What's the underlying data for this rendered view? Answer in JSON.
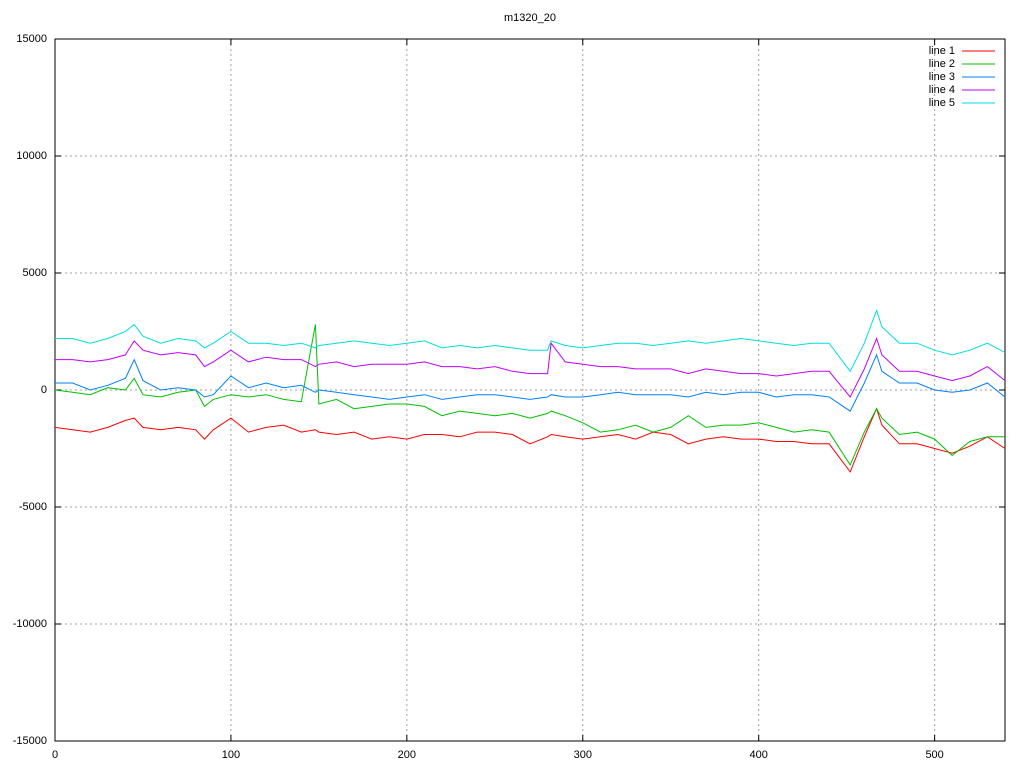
{
  "chart_data": {
    "type": "line",
    "title": "m1320_20",
    "x": [
      0,
      10,
      20,
      30,
      40,
      45,
      50,
      60,
      70,
      80,
      85,
      90,
      100,
      110,
      120,
      130,
      140,
      148,
      150,
      160,
      170,
      180,
      190,
      200,
      210,
      220,
      230,
      240,
      250,
      260,
      270,
      280,
      282,
      290,
      300,
      310,
      320,
      330,
      340,
      350,
      360,
      370,
      380,
      390,
      400,
      410,
      420,
      430,
      440,
      452,
      460,
      467,
      470,
      480,
      490,
      500,
      510,
      520,
      530,
      540
    ],
    "series": [
      {
        "name": "line 1",
        "color": "#ff0000",
        "values": [
          -1600,
          -1700,
          -1800,
          -1600,
          -1300,
          -1200,
          -1600,
          -1700,
          -1600,
          -1700,
          -2100,
          -1700,
          -1200,
          -1800,
          -1600,
          -1500,
          -1800,
          -1700,
          -1800,
          -1900,
          -1800,
          -2100,
          -2000,
          -2100,
          -1900,
          -1900,
          -2000,
          -1800,
          -1800,
          -1900,
          -2300,
          -2000,
          -1900,
          -2000,
          -2100,
          -2000,
          -1900,
          -2100,
          -1800,
          -1900,
          -2300,
          -2100,
          -2000,
          -2100,
          -2100,
          -2200,
          -2200,
          -2300,
          -2300,
          -3500,
          -2000,
          -800,
          -1500,
          -2300,
          -2300,
          -2500,
          -2700,
          -2400,
          -2000,
          -2500
        ]
      },
      {
        "name": "line 2",
        "color": "#00c000",
        "values": [
          0,
          -100,
          -200,
          100,
          0,
          500,
          -200,
          -300,
          -100,
          0,
          -700,
          -400,
          -200,
          -300,
          -200,
          -400,
          -500,
          2800,
          -600,
          -400,
          -800,
          -700,
          -600,
          -600,
          -700,
          -1100,
          -900,
          -1000,
          -1100,
          -1000,
          -1200,
          -1000,
          -900,
          -1100,
          -1400,
          -1800,
          -1700,
          -1500,
          -1800,
          -1600,
          -1100,
          -1600,
          -1500,
          -1500,
          -1400,
          -1600,
          -1800,
          -1700,
          -1800,
          -3200,
          -1800,
          -800,
          -1200,
          -1900,
          -1800,
          -2100,
          -2800,
          -2200,
          -2000,
          -2000
        ]
      },
      {
        "name": "line 3",
        "color": "#0080ff",
        "values": [
          300,
          300,
          0,
          200,
          500,
          1300,
          400,
          0,
          100,
          0,
          -300,
          -200,
          600,
          100,
          300,
          100,
          200,
          -100,
          0,
          -100,
          -200,
          -300,
          -400,
          -300,
          -200,
          -400,
          -300,
          -200,
          -200,
          -300,
          -400,
          -300,
          -200,
          -300,
          -300,
          -200,
          -100,
          -200,
          -200,
          -200,
          -300,
          -100,
          -200,
          -100,
          -100,
          -300,
          -200,
          -200,
          -300,
          -900,
          300,
          1500,
          800,
          300,
          300,
          0,
          -100,
          0,
          300,
          -300
        ]
      },
      {
        "name": "line 4",
        "color": "#c000ff",
        "values": [
          1300,
          1300,
          1200,
          1300,
          1500,
          2100,
          1700,
          1500,
          1600,
          1500,
          1000,
          1200,
          1700,
          1200,
          1400,
          1300,
          1300,
          1000,
          1100,
          1200,
          1000,
          1100,
          1100,
          1100,
          1200,
          1000,
          1000,
          900,
          1000,
          800,
          700,
          700,
          2000,
          1200,
          1100,
          1000,
          1000,
          900,
          900,
          900,
          700,
          900,
          800,
          700,
          700,
          600,
          700,
          800,
          800,
          -300,
          900,
          2200,
          1500,
          800,
          800,
          600,
          400,
          600,
          1000,
          400
        ]
      },
      {
        "name": "line 5",
        "color": "#00dddd",
        "values": [
          2200,
          2200,
          2000,
          2200,
          2500,
          2800,
          2300,
          2000,
          2200,
          2100,
          1800,
          2000,
          2500,
          2000,
          2000,
          1900,
          2000,
          1800,
          1900,
          2000,
          2100,
          2000,
          1900,
          2000,
          2100,
          1800,
          1900,
          1800,
          1900,
          1800,
          1700,
          1700,
          2100,
          1900,
          1800,
          1900,
          2000,
          2000,
          1900,
          2000,
          2100,
          2000,
          2100,
          2200,
          2100,
          2000,
          1900,
          2000,
          2000,
          800,
          2000,
          3400,
          2700,
          2000,
          2000,
          1700,
          1500,
          1700,
          2000,
          1600
        ]
      }
    ],
    "xlim": [
      0,
      540
    ],
    "xticks": [
      0,
      100,
      200,
      300,
      400,
      500
    ],
    "ylim": [
      -15000,
      15000
    ],
    "yticks": [
      -15000,
      -10000,
      -5000,
      0,
      5000,
      10000,
      15000
    ],
    "grid": true,
    "legend": "top-right"
  }
}
